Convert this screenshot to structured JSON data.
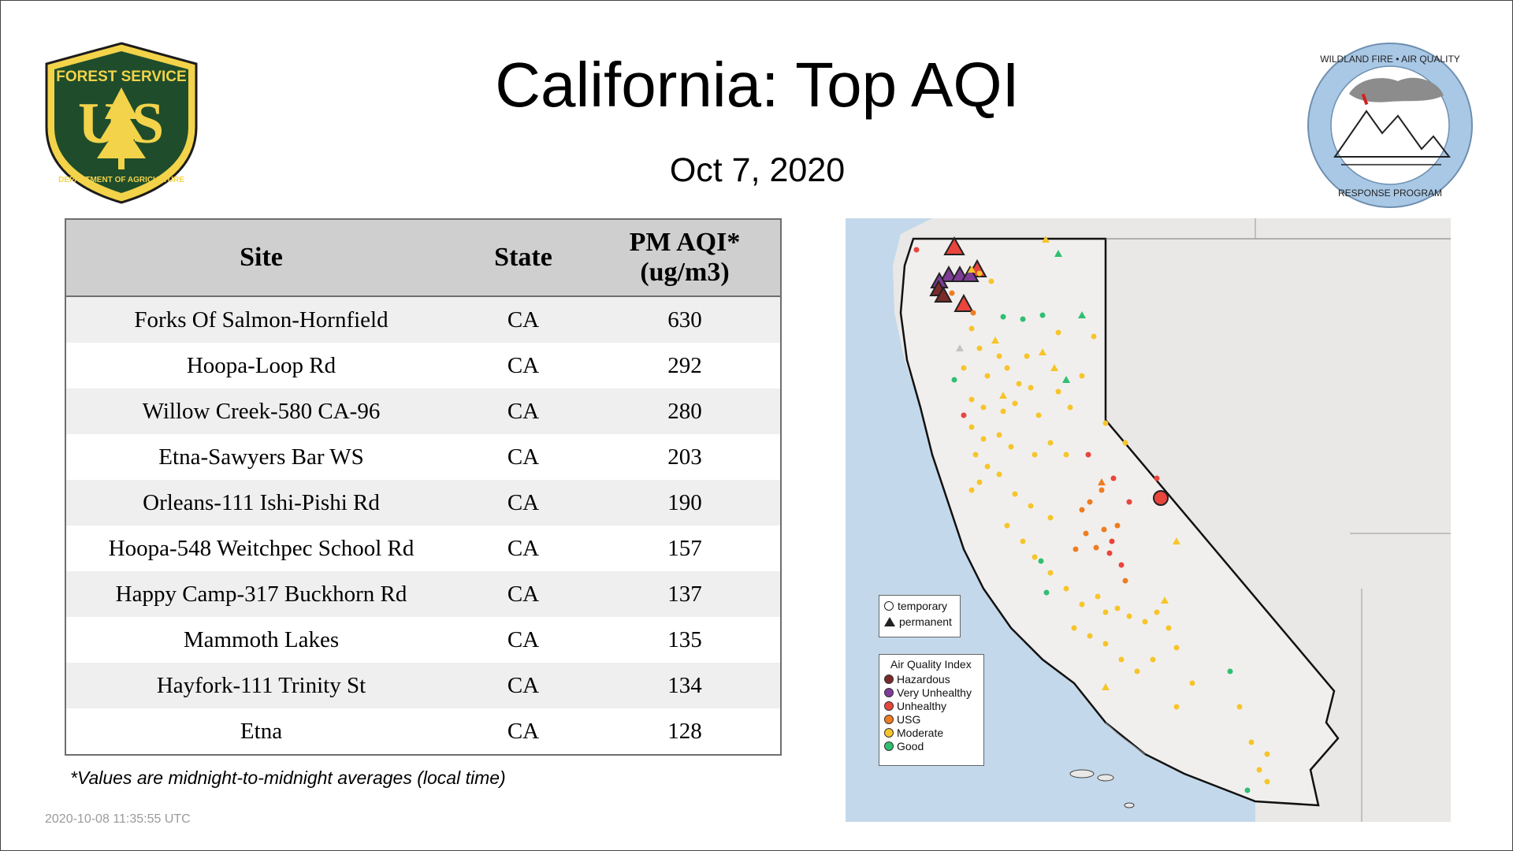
{
  "header": {
    "title": "California: Top AQI",
    "date": "Oct  7, 2020"
  },
  "logos": {
    "forest_service": {
      "top": "FOREST SERVICE",
      "letters": "US",
      "bottom": "DEPARTMENT OF AGRICULTURE",
      "colors": {
        "shield": "#1f4d2b",
        "gold": "#f3d34a"
      }
    },
    "wildland": {
      "top": "WILDLAND FIRE • AIR QUALITY",
      "bottom": "RESPONSE PROGRAM",
      "colors": {
        "ring": "#a9c8e6"
      }
    }
  },
  "table": {
    "headers": {
      "site": "Site",
      "state": "State",
      "aqi_line1": "PM AQI*",
      "aqi_line2": "(ug/m3)"
    },
    "rows": [
      {
        "site": "Forks Of Salmon-Hornfield",
        "state": "CA",
        "aqi": "630"
      },
      {
        "site": "Hoopa-Loop Rd",
        "state": "CA",
        "aqi": "292"
      },
      {
        "site": "Willow Creek-580 CA-96",
        "state": "CA",
        "aqi": "280"
      },
      {
        "site": "Etna-Sawyers Bar WS",
        "state": "CA",
        "aqi": "203"
      },
      {
        "site": "Orleans-111 Ishi-Pishi Rd",
        "state": "CA",
        "aqi": "190"
      },
      {
        "site": "Hoopa-548 Weitchpec School Rd",
        "state": "CA",
        "aqi": "157"
      },
      {
        "site": "Happy Camp-317 Buckhorn Rd",
        "state": "CA",
        "aqi": "137"
      },
      {
        "site": "Mammoth Lakes",
        "state": "CA",
        "aqi": "135"
      },
      {
        "site": "Hayfork-111 Trinity St",
        "state": "CA",
        "aqi": "134"
      },
      {
        "site": "Etna",
        "state": "CA",
        "aqi": "128"
      }
    ]
  },
  "footnote": "*Values are midnight-to-midnight averages (local time)",
  "timestamp": "2020-10-08 11:35:55 UTC",
  "map": {
    "legend_shapes": {
      "temporary": "temporary",
      "permanent": "permanent"
    },
    "legend_aqi": {
      "title": "Air Quality Index",
      "items": [
        {
          "label": "Hazardous",
          "color": "#7b2a2a"
        },
        {
          "label": "Very Unhealthy",
          "color": "#7e3c96"
        },
        {
          "label": "Unhealthy",
          "color": "#e8453c"
        },
        {
          "label": "USG",
          "color": "#ee7d21"
        },
        {
          "label": "Moderate",
          "color": "#f6c52a"
        },
        {
          "label": "Good",
          "color": "#2fbf71"
        }
      ]
    },
    "colors": {
      "ocean": "#c3d8ea",
      "land": "#ecebea",
      "state_fill": "#f1efee"
    }
  }
}
